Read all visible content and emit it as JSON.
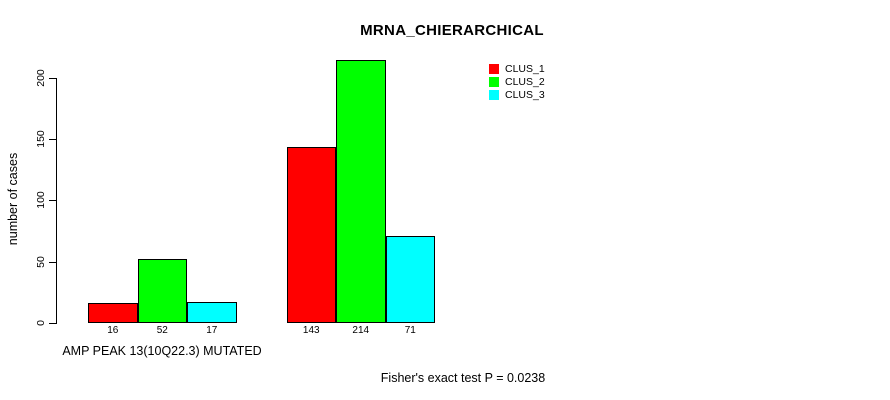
{
  "chart_data": {
    "type": "bar",
    "title": "MRNA_CHIERARCHICAL",
    "ylabel": "number of cases",
    "xlabel": "",
    "ylim": [
      0,
      200
    ],
    "yticks": [
      0,
      50,
      100,
      150,
      200
    ],
    "grid": false,
    "legend_position": "top-right",
    "series": [
      {
        "name": "CLUS_1",
        "color": "#FF0000"
      },
      {
        "name": "CLUS_2",
        "color": "#00FF00"
      },
      {
        "name": "CLUS_3",
        "color": "#00FFFF"
      }
    ],
    "groups": [
      {
        "label": "AMP PEAK 13(10Q22.3) MUTATED",
        "values": [
          16,
          52,
          17
        ]
      },
      {
        "label": "",
        "values": [
          143,
          214,
          71
        ]
      }
    ],
    "bar_value_labels": [
      [
        16,
        52,
        17
      ],
      [
        143,
        214,
        71
      ]
    ],
    "bar_border_color": "#000000",
    "footnote": "Fisher's exact test P = 0.0238"
  }
}
